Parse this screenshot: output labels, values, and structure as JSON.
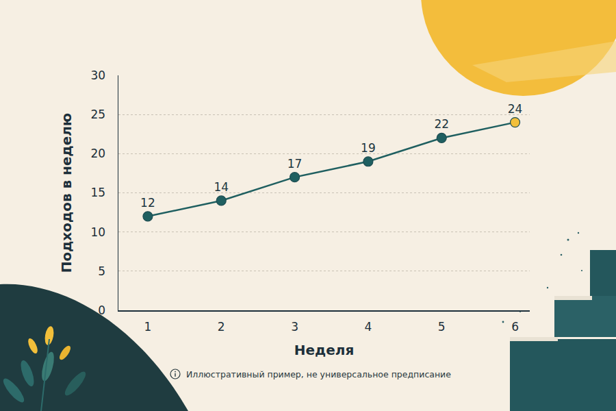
{
  "chart_data": {
    "type": "line",
    "x_label": "Неделя",
    "y_label": "Подходов в неделю",
    "x": [
      1,
      2,
      3,
      4,
      5,
      6
    ],
    "values": [
      12,
      14,
      17,
      19,
      22,
      24
    ],
    "color": "#1f5f60",
    "colors": [
      "#1f5f60",
      "#1f5f60",
      "#1f5f60",
      "#1f5f60",
      "#1f5f60",
      "#f2bf3a"
    ],
    "marker": "circle",
    "xlim": [
      0.6,
      6.2
    ],
    "xticks": [
      1,
      2,
      3,
      4,
      5,
      6
    ],
    "ylim": [
      0,
      30
    ],
    "yticks": [
      0,
      5,
      10,
      15,
      20,
      25,
      30
    ],
    "grid": true,
    "data_labels": true,
    "annotations": [
      {
        "text": "Иллюстративный пример, не универсальное предписание"
      }
    ]
  }
}
